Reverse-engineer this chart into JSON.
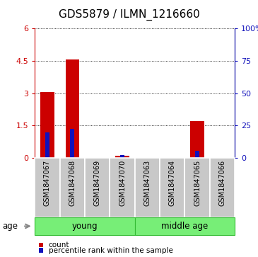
{
  "title": "GDS5879 / ILMN_1216660",
  "samples": [
    "GSM1847067",
    "GSM1847068",
    "GSM1847069",
    "GSM1847070",
    "GSM1847063",
    "GSM1847064",
    "GSM1847065",
    "GSM1847066"
  ],
  "red_values": [
    3.05,
    4.55,
    0.0,
    0.12,
    0.0,
    0.0,
    1.7,
    0.0
  ],
  "blue_pct": [
    20.0,
    22.5,
    0.0,
    2.5,
    0.0,
    0.0,
    5.8,
    0.0
  ],
  "ylim_left": [
    0,
    6
  ],
  "ylim_right": [
    0,
    100
  ],
  "yticks_left": [
    0,
    1.5,
    3.0,
    4.5,
    6.0
  ],
  "yticks_right": [
    0,
    25,
    50,
    75,
    100
  ],
  "ytick_labels_left": [
    "0",
    "1.5",
    "3",
    "4.5",
    "6"
  ],
  "ytick_labels_right": [
    "0",
    "25",
    "50",
    "75",
    "100%"
  ],
  "groups": [
    {
      "label": "young",
      "start": 0,
      "end": 4
    },
    {
      "label": "middle age",
      "start": 4,
      "end": 8
    }
  ],
  "age_label": "age",
  "legend_items": [
    {
      "color": "#cc0000",
      "label": "count"
    },
    {
      "color": "#1111bb",
      "label": "percentile rank within the sample"
    }
  ],
  "bar_width": 0.55,
  "blue_bar_width": 0.18,
  "red_color": "#cc0000",
  "blue_color": "#1111bb",
  "bg_color": "#ffffff",
  "plot_bg": "#ffffff",
  "label_box_color": "#c8c8c8",
  "group_box_color": "#77ee77",
  "group_box_edge": "#33bb33",
  "title_fontsize": 11,
  "tick_fontsize": 8,
  "label_fontsize": 7
}
